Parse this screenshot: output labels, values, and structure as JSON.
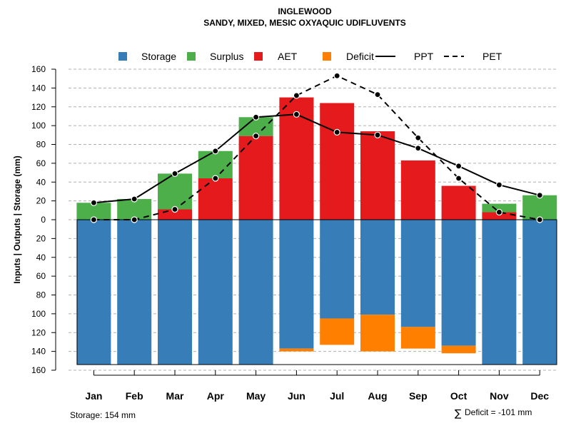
{
  "colors": {
    "storage": "#377eb8",
    "surplus": "#4daf4a",
    "aet": "#e41a1c",
    "deficit": "#ff7f00",
    "ppt": "#000000",
    "pet": "#000000",
    "grid": "#b0b0b0"
  },
  "chart_data": {
    "type": "bar",
    "title": "INGLEWOOD",
    "subtitle": "SANDY, MIXED, MESIC OXYAQUIC UDIFLUVENTS",
    "ylabel": "Inputs | Outputs | Storage    (mm)",
    "xlabel": "",
    "ylim": [
      -160,
      160
    ],
    "y_ticks": [
      160,
      140,
      120,
      100,
      80,
      60,
      40,
      20,
      0,
      -20,
      -40,
      -60,
      -80,
      -100,
      -120,
      -140,
      -160
    ],
    "y_tick_labels": [
      "160",
      "140",
      "120",
      "100",
      "80",
      "60",
      "40",
      "20",
      "0",
      "20",
      "40",
      "60",
      "80",
      "100",
      "120",
      "140",
      "160"
    ],
    "categories": [
      "Jan",
      "Feb",
      "Mar",
      "Apr",
      "May",
      "Jun",
      "Jul",
      "Aug",
      "Sep",
      "Oct",
      "Nov",
      "Dec"
    ],
    "legend": [
      {
        "key": "storage",
        "label": "Storage",
        "kind": "box"
      },
      {
        "key": "surplus",
        "label": "Surplus",
        "kind": "box"
      },
      {
        "key": "aet",
        "label": "AET",
        "kind": "box"
      },
      {
        "key": "deficit",
        "label": "Deficit",
        "kind": "box"
      },
      {
        "key": "ppt",
        "label": "PPT",
        "kind": "solid-line"
      },
      {
        "key": "pet",
        "label": "PET",
        "kind": "dashed-line"
      }
    ],
    "series": [
      {
        "name": "AET",
        "values": [
          0,
          0,
          11,
          44,
          89,
          130,
          124,
          94,
          63,
          36,
          8,
          0
        ]
      },
      {
        "name": "Surplus",
        "values": [
          18,
          22,
          38,
          29,
          20,
          0,
          0,
          0,
          0,
          0,
          9,
          26
        ]
      },
      {
        "name": "Storage",
        "values": [
          -154,
          -154,
          -154,
          -154,
          -154,
          -137,
          -105,
          -101,
          -114,
          -134,
          -154,
          -154
        ]
      },
      {
        "name": "Deficit",
        "values": [
          0,
          0,
          0,
          0,
          0,
          -3,
          -28,
          -39,
          -23,
          -8,
          0,
          0
        ]
      },
      {
        "name": "PPT",
        "values": [
          18,
          22,
          49,
          73,
          109,
          112,
          93,
          90,
          76,
          57,
          37,
          26
        ]
      },
      {
        "name": "PET",
        "values": [
          0,
          0,
          11,
          44,
          89,
          132,
          153,
          133,
          87,
          44,
          8,
          0
        ]
      }
    ],
    "storage_capacity": 154,
    "grid": true,
    "legend_position": "top"
  },
  "footnotes": {
    "storage_note": "Storage: 154 mm",
    "deficit_symbol": "∑",
    "deficit_note": "Deficit = -101 mm"
  }
}
